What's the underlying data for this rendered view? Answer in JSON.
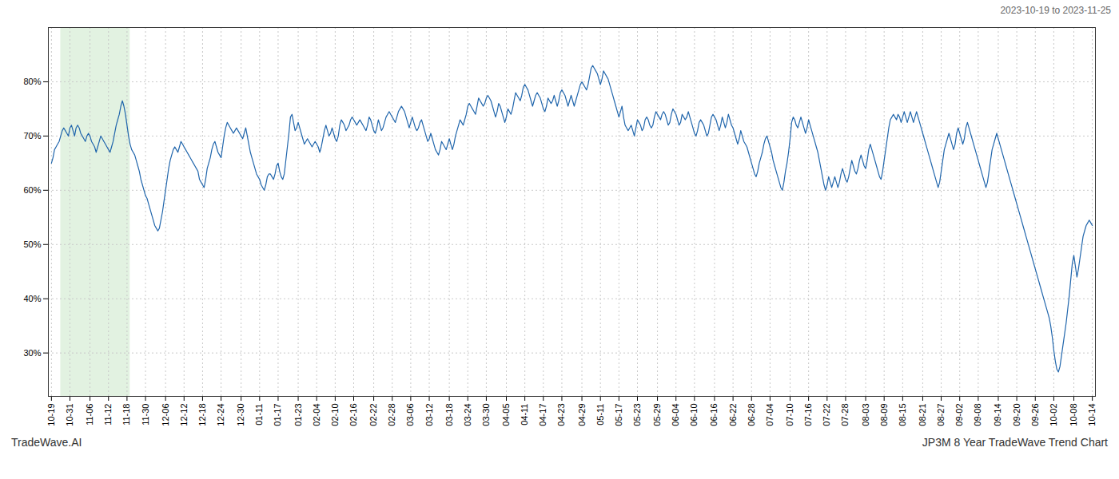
{
  "chart_data": {
    "type": "line",
    "subtitle": "2023-10-19 to 2023-11-25",
    "annotations": [
      "TradeWave.AI",
      "JP3M 8 Year TradeWave Trend Chart"
    ],
    "color": "#2166ac",
    "grid": true,
    "highlight": {
      "range": [
        6,
        51
      ],
      "color": "#d5ecd4"
    },
    "ylim": [
      22,
      90
    ],
    "yticks": [
      {
        "value": 30,
        "label": "30%"
      },
      {
        "value": 40,
        "label": "40%"
      },
      {
        "value": 50,
        "label": "50%"
      },
      {
        "value": 60,
        "label": "60%"
      },
      {
        "value": 70,
        "label": "70%"
      },
      {
        "value": 80,
        "label": "80%"
      }
    ],
    "categories": [
      "10-19",
      null,
      null,
      null,
      null,
      null,
      null,
      null,
      null,
      null,
      null,
      null,
      "10-31",
      null,
      null,
      null,
      null,
      null,
      null,
      null,
      null,
      null,
      null,
      null,
      null,
      "11-06",
      null,
      null,
      null,
      null,
      null,
      null,
      null,
      null,
      null,
      null,
      null,
      "11-12",
      null,
      null,
      null,
      null,
      null,
      null,
      null,
      null,
      null,
      null,
      null,
      "11-18",
      null,
      null,
      null,
      null,
      null,
      null,
      null,
      null,
      null,
      null,
      null,
      "11-30",
      null,
      null,
      null,
      null,
      null,
      null,
      null,
      null,
      null,
      null,
      null,
      null,
      "12-06",
      null,
      null,
      null,
      null,
      null,
      null,
      null,
      null,
      null,
      null,
      null,
      "12-12",
      null,
      null,
      null,
      null,
      null,
      null,
      null,
      null,
      null,
      null,
      null,
      "12-18",
      null,
      null,
      null,
      null,
      null,
      null,
      null,
      null,
      null,
      null,
      null,
      "12-24",
      null,
      null,
      null,
      null,
      null,
      null,
      null,
      null,
      null,
      null,
      null,
      null,
      "12-30",
      null,
      null,
      null,
      null,
      null,
      null,
      null,
      null,
      null,
      null,
      null,
      "01-11",
      null,
      null,
      null,
      null,
      null,
      null,
      null,
      null,
      null,
      null,
      null,
      "01-17",
      null,
      null,
      null,
      null,
      null,
      null,
      null,
      null,
      null,
      null,
      null,
      null,
      "01-23",
      null,
      null,
      null,
      null,
      null,
      null,
      null,
      null,
      null,
      null,
      null,
      "02-04",
      null,
      null,
      null,
      null,
      null,
      null,
      null,
      null,
      null,
      null,
      null,
      "02-10",
      null,
      null,
      null,
      null,
      null,
      null,
      null,
      null,
      null,
      null,
      null,
      "02-16",
      null,
      null,
      null,
      null,
      null,
      null,
      null,
      null,
      null,
      null,
      null,
      null,
      "02-22",
      null,
      null,
      null,
      null,
      null,
      null,
      null,
      null,
      null,
      null,
      null,
      "02-28",
      null,
      null,
      null,
      null,
      null,
      null,
      null,
      null,
      null,
      null,
      null,
      "03-06",
      null,
      null,
      null,
      null,
      null,
      null,
      null,
      null,
      null,
      null,
      null,
      "03-12",
      null,
      null,
      null,
      null,
      null,
      null,
      null,
      null,
      null,
      null,
      null,
      null,
      "03-18",
      null,
      null,
      null,
      null,
      null,
      null,
      null,
      null,
      null,
      null,
      null,
      "03-24",
      null,
      null,
      null,
      null,
      null,
      null,
      null,
      null,
      null,
      null,
      null,
      "03-30",
      null,
      null,
      null,
      null,
      null,
      null,
      null,
      null,
      null,
      null,
      null,
      null,
      "04-05",
      null,
      null,
      null,
      null,
      null,
      null,
      null,
      null,
      null,
      null,
      null,
      "04-11",
      null,
      null,
      null,
      null,
      null,
      null,
      null,
      null,
      null,
      null,
      null,
      "04-17",
      null,
      null,
      null,
      null,
      null,
      null,
      null,
      null,
      null,
      null,
      null,
      "04-23",
      null,
      null,
      null,
      null,
      null,
      null,
      null,
      null,
      null,
      null,
      null,
      null,
      "04-29",
      null,
      null,
      null,
      null,
      null,
      null,
      null,
      null,
      null,
      null,
      null,
      "05-11",
      null,
      null,
      null,
      null,
      null,
      null,
      null,
      null,
      null,
      null,
      null,
      "05-17",
      null,
      null,
      null,
      null,
      null,
      null,
      null,
      null,
      null,
      null,
      null,
      "05-23",
      null,
      null,
      null,
      null,
      null,
      null,
      null,
      null,
      null,
      null,
      null,
      null,
      "05-29",
      null,
      null,
      null,
      null,
      null,
      null,
      null,
      null,
      null,
      null,
      null,
      "06-04",
      null,
      null,
      null,
      null,
      null,
      null,
      null,
      null,
      null,
      null,
      null,
      "06-10",
      null,
      null,
      null,
      null,
      null,
      null,
      null,
      null,
      null,
      null,
      null,
      null,
      "06-16",
      null,
      null,
      null,
      null,
      null,
      null,
      null,
      null,
      null,
      null,
      null,
      "06-22",
      null,
      null,
      null,
      null,
      null,
      null,
      null,
      null,
      null,
      null,
      null,
      "06-28",
      null,
      null,
      null,
      null,
      null,
      null,
      null,
      null,
      null,
      null,
      null,
      "07-04",
      null,
      null,
      null,
      null,
      null,
      null,
      null,
      null,
      null,
      null,
      null,
      null,
      "07-10",
      null,
      null,
      null,
      null,
      null,
      null,
      null,
      null,
      null,
      null,
      null,
      "07-16",
      null,
      null,
      null,
      null,
      null,
      null,
      null,
      null,
      null,
      null,
      null,
      "07-22",
      null,
      null,
      null,
      null,
      null,
      null,
      null,
      null,
      null,
      null,
      null,
      "07-28",
      null,
      null,
      null,
      null,
      null,
      null,
      null,
      null,
      null,
      null,
      null,
      null,
      "08-03",
      null,
      null,
      null,
      null,
      null,
      null,
      null,
      null,
      null,
      null,
      null,
      "08-09",
      null,
      null,
      null,
      null,
      null,
      null,
      null,
      null,
      null,
      null,
      null,
      "08-15",
      null,
      null,
      null,
      null,
      null,
      null,
      null,
      null,
      null,
      null,
      null,
      null,
      "08-21",
      null,
      null,
      null,
      null,
      null,
      null,
      null,
      null,
      null,
      null,
      null,
      "08-27",
      null,
      null,
      null,
      null,
      null,
      null,
      null,
      null,
      null,
      null,
      null,
      "09-02",
      null,
      null,
      null,
      null,
      null,
      null,
      null,
      null,
      null,
      null,
      null,
      "09-08",
      null,
      null,
      null,
      null,
      null,
      null,
      null,
      null,
      null,
      null,
      null,
      null,
      "09-14",
      null,
      null,
      null,
      null,
      null,
      null,
      null,
      null,
      null,
      null,
      null,
      "09-20",
      null,
      null,
      null,
      null,
      null,
      null,
      null,
      null,
      null,
      null,
      null,
      "09-26",
      null,
      null,
      null,
      null,
      null,
      null,
      null,
      null,
      null,
      null,
      null,
      "10-02",
      null,
      null,
      null,
      null,
      null,
      null,
      null,
      null,
      null,
      null,
      null,
      null,
      "10-08",
      null,
      null,
      null,
      null,
      null,
      null,
      null,
      null,
      null,
      null,
      null,
      "10-14"
    ],
    "values": [
      65.0,
      66.0,
      67.5,
      68.0,
      68.5,
      69.0,
      70.0,
      71.0,
      71.5,
      71.0,
      70.5,
      70.0,
      71.5,
      72.0,
      71.0,
      70.0,
      71.5,
      72.0,
      71.5,
      70.5,
      70.0,
      69.5,
      69.0,
      70.0,
      70.5,
      70.0,
      69.0,
      68.5,
      68.0,
      67.0,
      68.0,
      69.0,
      70.0,
      69.5,
      69.0,
      68.5,
      68.0,
      67.5,
      67.0,
      68.0,
      69.0,
      70.5,
      72.0,
      73.0,
      74.0,
      75.5,
      76.5,
      75.5,
      74.0,
      72.0,
      70.0,
      68.5,
      67.5,
      67.0,
      66.5,
      65.5,
      64.5,
      63.5,
      62.0,
      61.0,
      60.0,
      59.0,
      58.5,
      57.5,
      56.5,
      55.5,
      54.5,
      53.5,
      53.0,
      52.5,
      53.0,
      54.5,
      56.0,
      58.0,
      60.0,
      62.0,
      64.0,
      65.5,
      66.5,
      67.5,
      68.0,
      67.5,
      67.0,
      68.0,
      69.0,
      68.5,
      68.0,
      67.5,
      67.0,
      66.5,
      66.0,
      65.5,
      65.0,
      64.5,
      64.0,
      63.5,
      62.0,
      61.5,
      61.0,
      60.5,
      62.0,
      64.0,
      65.0,
      66.0,
      67.5,
      68.5,
      69.0,
      68.0,
      67.0,
      66.5,
      66.0,
      68.0,
      70.0,
      71.5,
      72.5,
      72.0,
      71.5,
      71.0,
      70.5,
      71.0,
      71.5,
      71.0,
      70.5,
      70.0,
      69.5,
      70.5,
      71.5,
      70.0,
      68.5,
      67.0,
      66.0,
      65.0,
      64.0,
      63.0,
      62.5,
      62.0,
      61.0,
      60.5,
      60.0,
      61.0,
      62.5,
      63.0,
      63.0,
      62.5,
      62.0,
      63.0,
      64.5,
      65.0,
      63.5,
      62.5,
      62.0,
      63.0,
      65.5,
      68.0,
      70.5,
      73.5,
      74.0,
      72.5,
      71.0,
      71.5,
      72.5,
      71.5,
      70.5,
      69.5,
      68.5,
      69.0,
      69.5,
      69.0,
      68.5,
      68.0,
      68.5,
      69.0,
      68.5,
      68.0,
      67.0,
      68.0,
      69.5,
      71.0,
      72.0,
      71.0,
      70.0,
      70.5,
      71.5,
      70.5,
      69.5,
      69.0,
      70.0,
      72.0,
      73.0,
      72.5,
      72.0,
      71.0,
      71.5,
      72.0,
      73.0,
      73.5,
      73.0,
      72.5,
      72.0,
      72.5,
      73.0,
      72.5,
      72.0,
      71.5,
      71.0,
      72.0,
      73.5,
      73.0,
      72.0,
      71.0,
      70.5,
      71.5,
      73.0,
      72.0,
      71.0,
      71.5,
      72.5,
      73.5,
      74.0,
      74.5,
      74.0,
      73.5,
      73.0,
      72.5,
      73.5,
      74.5,
      75.0,
      75.5,
      75.0,
      74.5,
      73.5,
      72.5,
      71.5,
      72.5,
      73.5,
      72.5,
      71.5,
      71.0,
      71.5,
      72.5,
      73.0,
      72.0,
      71.0,
      70.0,
      69.0,
      69.5,
      70.5,
      69.5,
      68.5,
      67.5,
      67.0,
      66.5,
      67.5,
      69.0,
      68.5,
      68.0,
      67.5,
      68.5,
      69.5,
      68.5,
      67.5,
      68.5,
      70.0,
      71.0,
      72.0,
      73.0,
      72.5,
      72.0,
      73.0,
      74.0,
      75.5,
      76.0,
      75.5,
      75.0,
      74.5,
      74.0,
      75.5,
      77.0,
      76.5,
      76.0,
      75.5,
      76.0,
      77.0,
      77.5,
      77.0,
      76.5,
      75.5,
      74.5,
      73.5,
      74.5,
      76.0,
      75.5,
      74.5,
      73.5,
      72.5,
      73.5,
      75.0,
      74.5,
      74.0,
      75.0,
      76.5,
      78.0,
      77.5,
      77.0,
      76.5,
      77.5,
      79.0,
      79.5,
      79.0,
      78.5,
      77.5,
      76.5,
      75.5,
      76.5,
      77.5,
      78.0,
      77.5,
      77.0,
      76.0,
      75.0,
      74.5,
      75.5,
      77.0,
      76.5,
      76.0,
      76.5,
      77.5,
      76.5,
      75.5,
      76.5,
      78.0,
      78.5,
      78.0,
      77.5,
      76.5,
      75.5,
      76.5,
      77.5,
      76.5,
      75.5,
      76.5,
      77.5,
      78.5,
      79.5,
      80.0,
      79.5,
      79.0,
      78.5,
      79.5,
      81.0,
      82.5,
      83.0,
      82.5,
      82.0,
      81.5,
      80.5,
      79.5,
      80.5,
      82.0,
      81.5,
      81.0,
      80.5,
      79.5,
      78.5,
      77.5,
      76.5,
      75.5,
      74.5,
      73.5,
      74.5,
      75.5,
      73.5,
      72.0,
      71.5,
      71.0,
      71.5,
      72.0,
      71.0,
      70.0,
      71.5,
      73.0,
      72.5,
      72.0,
      71.0,
      71.5,
      73.0,
      73.5,
      73.0,
      72.0,
      71.5,
      72.0,
      73.5,
      74.5,
      74.0,
      73.5,
      73.0,
      74.0,
      74.5,
      74.0,
      73.0,
      72.0,
      72.5,
      74.0,
      75.0,
      74.5,
      74.0,
      73.0,
      72.0,
      72.5,
      74.0,
      73.5,
      73.0,
      73.5,
      74.5,
      73.5,
      72.5,
      71.5,
      70.5,
      70.0,
      71.0,
      72.5,
      73.0,
      72.5,
      72.0,
      71.0,
      70.0,
      70.5,
      72.0,
      73.5,
      74.0,
      73.5,
      73.0,
      72.0,
      71.0,
      72.0,
      73.5,
      72.5,
      71.5,
      72.5,
      74.0,
      73.0,
      72.0,
      71.5,
      70.5,
      69.5,
      68.5,
      69.5,
      71.0,
      70.0,
      69.0,
      68.5,
      68.0,
      67.0,
      66.0,
      65.0,
      64.0,
      63.0,
      62.5,
      63.5,
      65.0,
      66.0,
      67.0,
      68.5,
      69.5,
      70.0,
      69.0,
      68.0,
      67.0,
      65.5,
      64.5,
      63.5,
      62.5,
      61.5,
      60.5,
      60.0,
      61.5,
      63.5,
      65.0,
      67.0,
      69.5,
      72.5,
      73.5,
      73.0,
      72.0,
      71.5,
      72.5,
      73.5,
      72.5,
      71.5,
      70.5,
      71.5,
      73.0,
      72.0,
      71.0,
      70.0,
      69.0,
      68.0,
      67.0,
      65.5,
      64.0,
      62.5,
      61.0,
      60.0,
      61.0,
      62.5,
      61.5,
      60.5,
      61.5,
      62.5,
      61.5,
      60.5,
      61.5,
      63.0,
      64.0,
      63.0,
      62.0,
      61.5,
      62.5,
      64.0,
      65.5,
      64.5,
      63.5,
      63.0,
      64.0,
      65.5,
      66.5,
      65.5,
      64.5,
      64.0,
      65.5,
      67.5,
      68.5,
      67.5,
      66.5,
      65.5,
      64.5,
      63.5,
      62.5,
      62.0,
      63.5,
      65.5,
      67.5,
      69.5,
      71.5,
      73.0,
      73.5,
      74.0,
      73.5,
      73.0,
      74.0,
      73.5,
      72.5,
      73.5,
      74.5,
      73.5,
      72.5,
      73.5,
      74.5,
      73.5,
      72.5,
      73.5,
      74.5,
      73.5,
      72.5,
      71.5,
      70.5,
      69.5,
      68.5,
      67.5,
      66.5,
      65.5,
      64.5,
      63.5,
      62.5,
      61.5,
      60.5,
      61.5,
      63.5,
      65.5,
      67.5,
      68.5,
      69.5,
      70.5,
      69.5,
      68.5,
      67.5,
      68.5,
      70.5,
      71.5,
      70.5,
      69.5,
      68.5,
      69.5,
      71.5,
      72.5,
      71.5,
      70.5,
      69.5,
      68.5,
      67.5,
      66.5,
      65.5,
      64.5,
      63.5,
      62.5,
      61.5,
      60.5,
      61.5,
      63.5,
      65.5,
      67.5,
      68.5,
      69.5,
      70.5,
      69.5,
      68.5,
      67.5,
      66.5,
      65.5,
      64.5,
      63.5,
      62.5,
      61.5,
      60.5,
      59.5,
      58.5,
      57.5,
      56.5,
      55.5,
      54.5,
      53.5,
      52.5,
      51.5,
      50.5,
      49.5,
      48.5,
      47.5,
      46.5,
      45.5,
      44.5,
      43.5,
      42.5,
      41.5,
      40.5,
      39.5,
      38.5,
      37.5,
      36.5,
      35.0,
      33.0,
      30.5,
      28.5,
      27.0,
      26.5,
      27.5,
      29.5,
      31.5,
      33.5,
      35.5,
      38.0,
      40.5,
      43.5,
      46.5,
      48.0,
      46.0,
      44.0,
      45.5,
      47.5,
      49.5,
      51.5,
      52.5,
      53.5,
      54.0,
      54.5,
      54.0,
      53.5
    ]
  }
}
